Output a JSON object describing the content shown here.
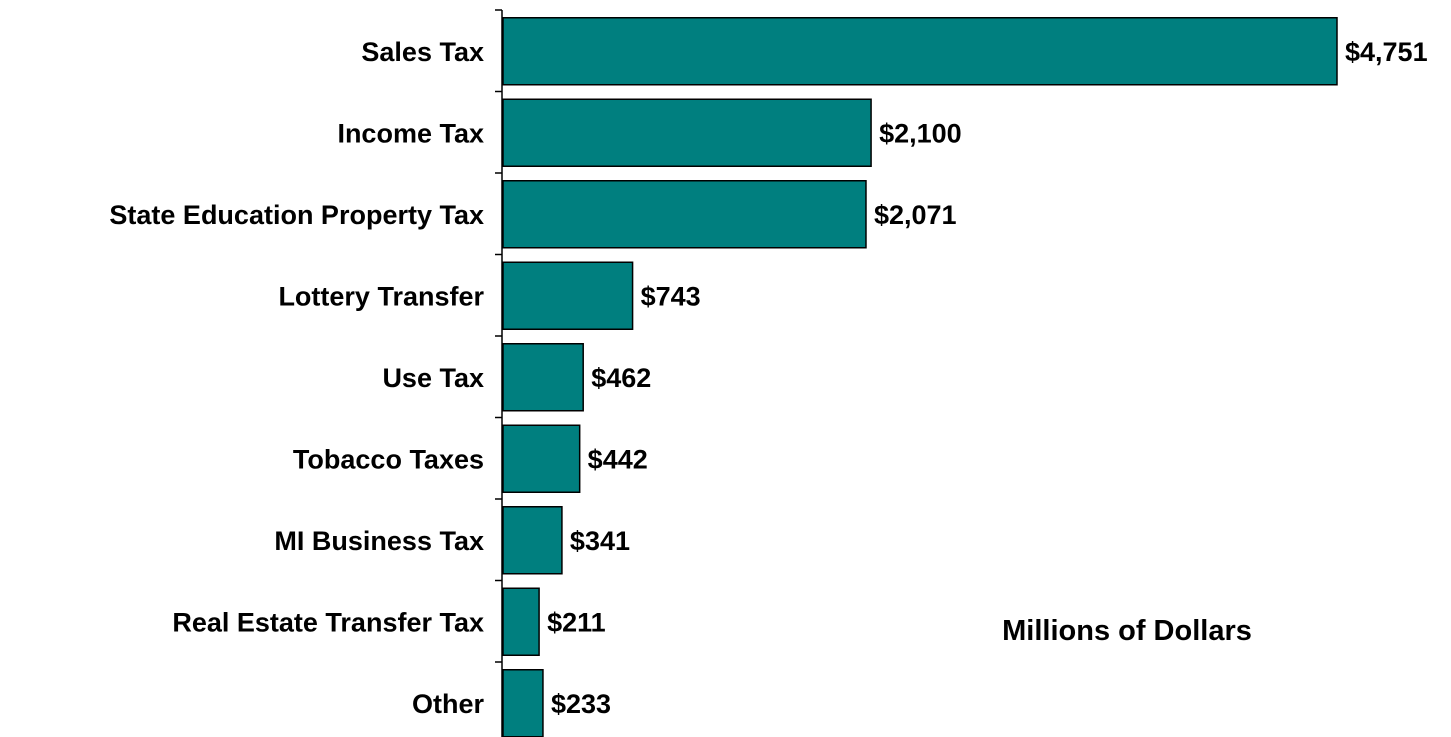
{
  "chart_data": {
    "type": "bar",
    "orientation": "horizontal",
    "title": "",
    "xlabel": "",
    "ylabel": "",
    "unit_note": "Millions of Dollars",
    "categories": [
      "Sales Tax",
      "Income Tax",
      "State Education Property Tax",
      "Lottery Transfer",
      "Use Tax",
      "Tobacco Taxes",
      "MI Business Tax",
      "Real Estate Transfer Tax",
      "Other"
    ],
    "values": [
      4751,
      2100,
      2071,
      743,
      462,
      442,
      341,
      211,
      233
    ],
    "value_labels": [
      "$4,751",
      "$2,100",
      "$2,071",
      "$743",
      "$462",
      "$442",
      "$341",
      "$211",
      "$233"
    ],
    "xlim": [
      0,
      4751
    ],
    "grid": false,
    "legend": "none",
    "colors": {
      "bar_fill": "#007F7F",
      "bar_stroke": "#000000",
      "text": "#000000",
      "background": "#FFFFFF"
    }
  }
}
